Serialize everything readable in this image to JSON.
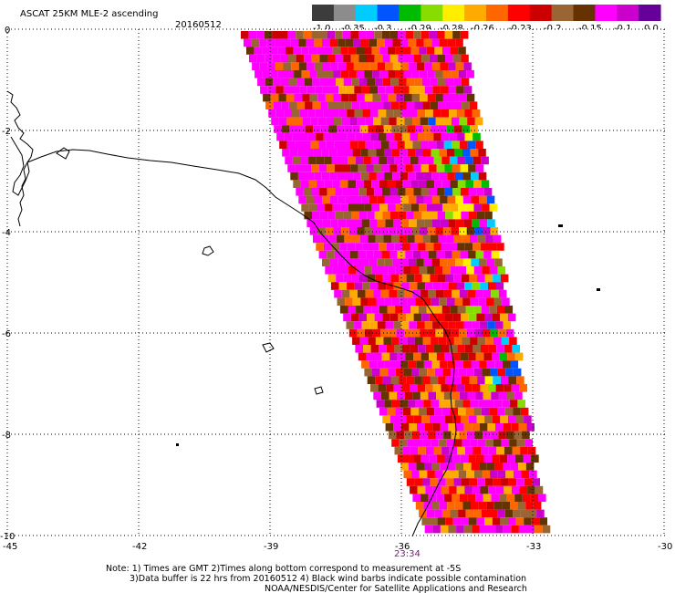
{
  "title": "ASCAT 25KM MLE-2 ascending",
  "date": "20160512",
  "colorbar": {
    "labels": [
      "-1.0",
      "-0.35",
      "-0.3",
      "-0.29",
      "-0.28",
      "-0.26",
      "-0.23",
      "-0.2",
      "-0.15",
      "-0.1",
      "0.0"
    ],
    "colors": [
      "#3c3c3c",
      "#8c8c8c",
      "#00ccff",
      "#0055ff",
      "#00bb00",
      "#88dd00",
      "#ffee00",
      "#ffaa00",
      "#ff6600",
      "#ff0000",
      "#cc0000",
      "#996633",
      "#663300",
      "#ff00ff",
      "#cc00cc",
      "#660099"
    ]
  },
  "axes": {
    "x_ticks": [
      "-45",
      "-42",
      "-39",
      "-36",
      "-33",
      "-30"
    ],
    "y_ticks": [
      "0",
      "-2",
      "-4",
      "-6",
      "-8",
      "-10"
    ]
  },
  "time_label": "23:34",
  "notes": [
    "Note: 1) Times are GMT 2)Times along bottom correspond to measurement at -5S",
    "3)Data buffer is 22 hrs from 20160512 4) Black wind barbs indicate possible contamination",
    "NOAA/NESDIS/Center for Satellite Applications and Research"
  ]
}
